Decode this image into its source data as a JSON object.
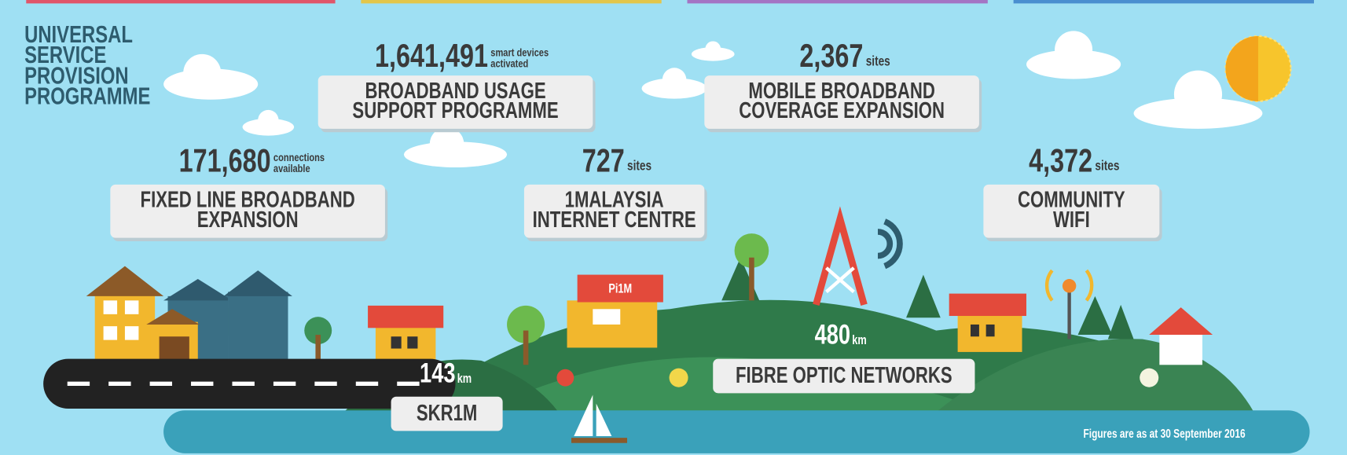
{
  "title": [
    "UNIVERSAL",
    "SERVICE",
    "PROVISION",
    "PROGRAMME"
  ],
  "programmes": [
    {
      "value": "1,641,491",
      "unit": [
        "smart devices",
        "activated"
      ],
      "name": [
        "BROADBAND USAGE",
        "SUPPORT PROGRAMME"
      ]
    },
    {
      "value": "2,367",
      "unit": [
        "sites"
      ],
      "name": [
        "MOBILE BROADBAND",
        "COVERAGE EXPANSION"
      ]
    },
    {
      "value": "171,680",
      "unit": [
        "connections",
        "available"
      ],
      "name": [
        "FIXED LINE BROADBAND",
        "EXPANSION"
      ]
    },
    {
      "value": "727",
      "unit": [
        "sites"
      ],
      "name": [
        "1MALAYSIA",
        "INTERNET CENTRE"
      ]
    },
    {
      "value": "4,372",
      "unit": [
        "sites"
      ],
      "name": [
        "COMMUNITY",
        "WIFI"
      ]
    }
  ],
  "networks": [
    {
      "value": "143",
      "unit": "km",
      "name": "SKR1M"
    },
    {
      "value": "480",
      "unit": "km",
      "name": "FIBRE OPTIC NETWORKS"
    }
  ],
  "sign": "Pi1M",
  "footnote": "Figures are as at 30 September 2016"
}
